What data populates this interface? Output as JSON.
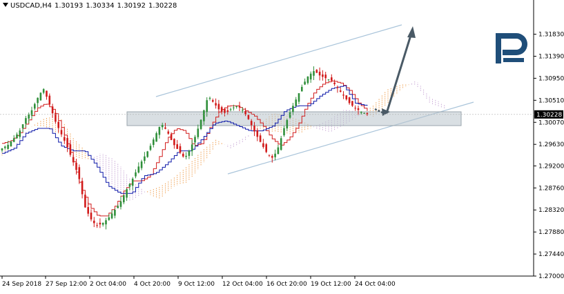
{
  "header": {
    "symbol": "USDCAD,H4",
    "open": "1.30193",
    "high": "1.30334",
    "low": "1.30192",
    "close": "1.30228"
  },
  "current_price_label": "1.30228",
  "colors": {
    "bull": "#2f8f3a",
    "bear": "#d11a1a",
    "tenkan": "#d11a1a",
    "kijun": "#0b17a8",
    "cloud_bull": "#c9a8d6",
    "cloud_bear": "#f0a050",
    "channel": "#a9c4da",
    "zone": "#b9c4cc",
    "arrow": "#4a5a66",
    "logo": "#1f4e79"
  },
  "chart_data": {
    "type": "candlestick",
    "instrument": "USDCAD",
    "timeframe": "H4",
    "ylim": [
      1.27,
      1.3232
    ],
    "y_ticks": [
      "1.31830",
      "1.31390",
      "1.30950",
      "1.30510",
      "1.30070",
      "1.29630",
      "1.29200",
      "1.28760",
      "1.28320",
      "1.27880",
      "1.27440",
      "1.27000"
    ],
    "x_tick_labels": [
      "24 Sep 2018",
      "27 Sep 12:00",
      "2 Oct 04:00",
      "4 Oct 20:00",
      "9 Oct 12:00",
      "12 Oct 04:00",
      "16 Oct 20:00",
      "19 Oct 12:00",
      "24 Oct 04:00"
    ],
    "grid": false,
    "close_path": [
      1.2955,
      1.2962,
      1.2975,
      1.299,
      1.3015,
      1.303,
      1.3055,
      1.3075,
      1.3045,
      1.301,
      1.2985,
      1.296,
      1.293,
      1.29,
      1.284,
      1.2815,
      1.28,
      1.2805,
      1.2815,
      1.283,
      1.2845,
      1.287,
      1.289,
      1.2915,
      1.2935,
      1.2955,
      1.298,
      1.3005,
      1.299,
      1.2965,
      1.295,
      1.2935,
      1.2955,
      1.2985,
      1.302,
      1.306,
      1.3045,
      1.303,
      1.3025,
      1.3035,
      1.304,
      1.303,
      1.301,
      1.2985,
      1.2965,
      1.2945,
      1.2935,
      1.296,
      1.3,
      1.303,
      1.3055,
      1.308,
      1.31,
      1.311,
      1.31,
      1.3095,
      1.309,
      1.3075,
      1.306,
      1.3045,
      1.3035,
      1.3028,
      1.3023
    ],
    "tenkan_path": [
      1.2965,
      1.297,
      1.2985,
      1.301,
      1.3035,
      1.3045,
      1.303,
      1.299,
      1.294,
      1.288,
      1.284,
      1.282,
      1.282,
      1.284,
      1.287,
      1.289,
      1.289,
      1.29,
      1.2935,
      1.2975,
      1.2995,
      1.299,
      1.296,
      1.2965,
      1.3,
      1.303,
      1.304,
      1.304,
      1.303,
      1.302,
      1.3,
      1.2975,
      1.296,
      1.2975,
      1.3,
      1.304,
      1.307,
      1.3085,
      1.309,
      1.3085,
      1.307,
      1.3045,
      1.303
    ],
    "kijun_path": [
      1.2945,
      1.2955,
      1.2985,
      1.2995,
      1.2995,
      1.296,
      1.295,
      1.295,
      1.292,
      1.288,
      1.2865,
      1.2865,
      1.29,
      1.2905,
      1.2925,
      1.295,
      1.295,
      1.2975,
      1.3005,
      1.301,
      1.3,
      1.299,
      1.299,
      1.3,
      1.303,
      1.304,
      1.304,
      1.306,
      1.3075,
      1.308,
      1.3045,
      1.304
    ],
    "ichimoku_cloud": true,
    "annotations": [
      "ascending channel",
      "horizontal support/resistance zone",
      "forecast arrow: dip toward zone then rise toward channel top"
    ]
  }
}
